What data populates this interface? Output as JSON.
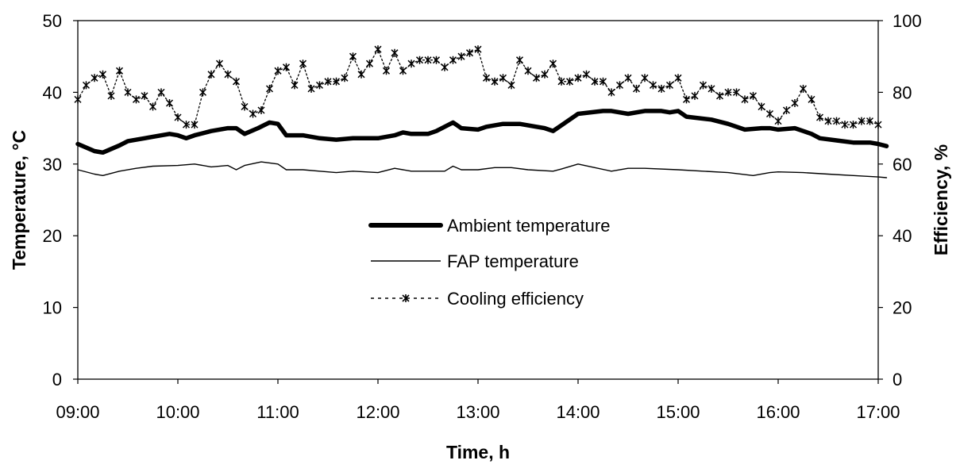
{
  "chart_data": {
    "type": "line",
    "title": "",
    "xlabel": "Time, h",
    "ylabel": "Temperature, °C",
    "y2label": "Efficiency, %",
    "xlim": [
      "09:00",
      "17:00"
    ],
    "ylim": [
      0,
      50
    ],
    "y2lim": [
      0,
      100
    ],
    "x_ticks": [
      "09:00",
      "10:00",
      "11:00",
      "12:00",
      "13:00",
      "14:00",
      "15:00",
      "16:00",
      "17:00"
    ],
    "y_ticks": [
      "0",
      "10",
      "20",
      "30",
      "40",
      "50"
    ],
    "y2_ticks": [
      "0",
      "20",
      "40",
      "60",
      "80",
      "100"
    ],
    "grid": false,
    "legend_position": "center",
    "series": [
      {
        "name": "Ambient temperature",
        "axis": "left",
        "style": "thick-solid",
        "color": "#000000",
        "x": [
          "09:00",
          "09:10",
          "09:15",
          "09:25",
          "09:30",
          "09:40",
          "09:45",
          "09:55",
          "10:00",
          "10:05",
          "10:10",
          "10:20",
          "10:30",
          "10:35",
          "10:40",
          "10:48",
          "10:55",
          "11:00",
          "11:05",
          "11:15",
          "11:25",
          "11:35",
          "11:45",
          "12:00",
          "12:10",
          "12:15",
          "12:20",
          "12:30",
          "12:35",
          "12:45",
          "12:50",
          "13:00",
          "13:05",
          "13:15",
          "13:25",
          "13:35",
          "13:40",
          "13:45",
          "13:50",
          "14:00",
          "14:15",
          "14:20",
          "14:30",
          "14:40",
          "14:50",
          "14:55",
          "15:00",
          "15:05",
          "15:20",
          "15:30",
          "15:40",
          "15:50",
          "15:55",
          "16:00",
          "16:05",
          "16:10",
          "16:15",
          "16:20",
          "16:25",
          "16:35",
          "16:45",
          "16:55",
          "17:00",
          "17:05"
        ],
        "y": [
          32.8,
          31.8,
          31.6,
          32.6,
          33.2,
          33.6,
          33.8,
          34.2,
          34.0,
          33.6,
          34.0,
          34.6,
          35.0,
          35.0,
          34.2,
          35.0,
          35.8,
          35.6,
          34.0,
          34.0,
          33.6,
          33.4,
          33.6,
          33.6,
          34.0,
          34.4,
          34.2,
          34.2,
          34.6,
          35.8,
          35.0,
          34.8,
          35.2,
          35.6,
          35.6,
          35.2,
          35.0,
          34.6,
          35.4,
          37.0,
          37.4,
          37.4,
          37.0,
          37.4,
          37.4,
          37.2,
          37.4,
          36.6,
          36.2,
          35.6,
          34.8,
          35.0,
          35.0,
          34.8,
          34.9,
          35.0,
          34.6,
          34.2,
          33.6,
          33.3,
          33.0,
          33.0,
          32.8,
          32.5
        ]
      },
      {
        "name": "FAP temperature",
        "axis": "left",
        "style": "thin-solid",
        "color": "#000000",
        "x": [
          "09:00",
          "09:10",
          "09:15",
          "09:25",
          "09:35",
          "09:45",
          "10:00",
          "10:10",
          "10:20",
          "10:30",
          "10:35",
          "10:40",
          "10:50",
          "11:00",
          "11:05",
          "11:15",
          "11:25",
          "11:35",
          "11:45",
          "12:00",
          "12:10",
          "12:20",
          "12:30",
          "12:40",
          "12:45",
          "12:50",
          "13:00",
          "13:10",
          "13:20",
          "13:30",
          "13:45",
          "13:50",
          "14:00",
          "14:10",
          "14:20",
          "14:30",
          "14:40",
          "15:00",
          "15:15",
          "15:30",
          "15:45",
          "15:55",
          "16:00",
          "16:15",
          "16:30",
          "16:45",
          "17:00",
          "17:05"
        ],
        "y": [
          29.2,
          28.6,
          28.4,
          29.0,
          29.4,
          29.7,
          29.8,
          30.0,
          29.6,
          29.8,
          29.2,
          29.8,
          30.3,
          30.0,
          29.2,
          29.2,
          29.0,
          28.8,
          29.0,
          28.8,
          29.4,
          29.0,
          29.0,
          29.0,
          29.7,
          29.2,
          29.2,
          29.5,
          29.5,
          29.2,
          29.0,
          29.3,
          30.0,
          29.5,
          29.0,
          29.4,
          29.4,
          29.2,
          29.0,
          28.8,
          28.4,
          28.8,
          28.9,
          28.8,
          28.6,
          28.4,
          28.2,
          28.1
        ]
      },
      {
        "name": "Cooling efficiency",
        "axis": "right",
        "style": "dotted-asterisk",
        "color": "#000000",
        "x": [
          "09:00",
          "09:05",
          "09:10",
          "09:15",
          "09:20",
          "09:25",
          "09:30",
          "09:35",
          "09:40",
          "09:45",
          "09:50",
          "09:55",
          "10:00",
          "10:05",
          "10:10",
          "10:15",
          "10:20",
          "10:25",
          "10:30",
          "10:35",
          "10:40",
          "10:45",
          "10:50",
          "10:55",
          "11:00",
          "11:05",
          "11:10",
          "11:15",
          "11:20",
          "11:25",
          "11:30",
          "11:35",
          "11:40",
          "11:45",
          "11:50",
          "11:55",
          "12:00",
          "12:05",
          "12:10",
          "12:15",
          "12:20",
          "12:25",
          "12:30",
          "12:35",
          "12:40",
          "12:45",
          "12:50",
          "12:55",
          "13:00",
          "13:05",
          "13:10",
          "13:15",
          "13:20",
          "13:25",
          "13:30",
          "13:35",
          "13:40",
          "13:45",
          "13:50",
          "13:55",
          "14:00",
          "14:05",
          "14:10",
          "14:15",
          "14:20",
          "14:25",
          "14:30",
          "14:35",
          "14:40",
          "14:45",
          "14:50",
          "14:55",
          "15:00",
          "15:05",
          "15:10",
          "15:15",
          "15:20",
          "15:25",
          "15:30",
          "15:35",
          "15:40",
          "15:45",
          "15:50",
          "15:55",
          "16:00",
          "16:05",
          "16:10",
          "16:15",
          "16:20",
          "16:25",
          "16:30",
          "16:35",
          "16:40",
          "16:45",
          "16:50",
          "16:55",
          "17:00"
        ],
        "y": [
          78,
          82,
          84,
          85,
          79,
          86,
          80,
          78,
          79,
          76,
          80,
          77,
          73,
          71,
          71,
          80,
          85,
          88,
          85,
          83,
          76,
          74,
          75,
          81,
          86,
          87,
          82,
          88,
          81,
          82,
          83,
          83,
          84,
          90,
          85,
          88,
          92,
          86,
          91,
          86,
          88,
          89,
          89,
          89,
          87,
          89,
          90,
          91,
          92,
          84,
          83,
          84,
          82,
          89,
          86,
          84,
          85,
          88,
          83,
          83,
          84,
          85,
          83,
          83,
          80,
          82,
          84,
          81,
          84,
          82,
          81,
          82,
          84,
          78,
          79,
          82,
          81,
          79,
          80,
          80,
          78,
          79,
          76,
          74,
          72,
          75,
          77,
          81,
          78,
          73,
          72,
          72,
          71,
          71,
          72,
          72,
          71
        ]
      }
    ]
  }
}
